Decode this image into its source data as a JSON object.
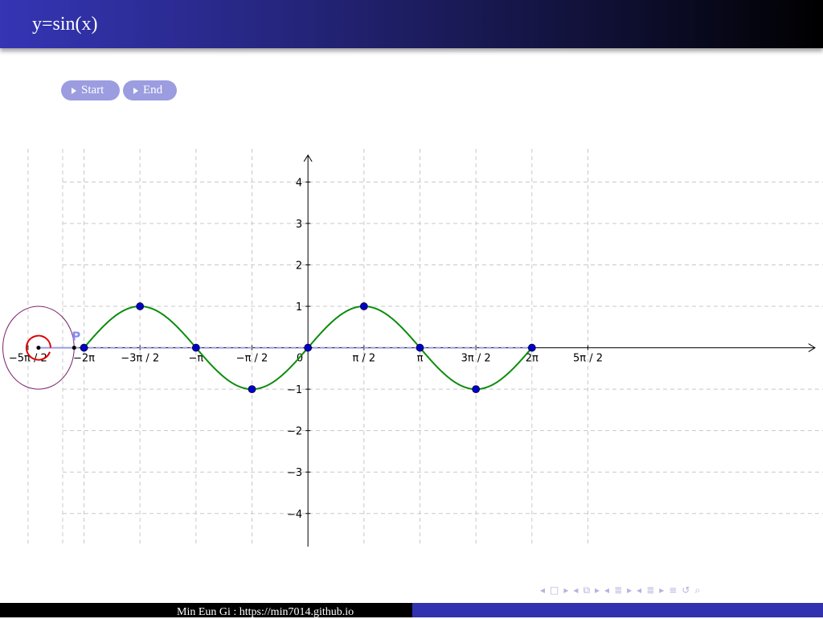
{
  "header": {
    "title": "y=sin(x)"
  },
  "controls": {
    "start_label": "Start",
    "end_label": "End"
  },
  "point_label": "P",
  "footer": {
    "author": "Min Eun Gi : https://min7014.github.io"
  },
  "nav_icons": [
    "left-arrow-icon",
    "frame-icon",
    "right-arrow-icon",
    "left-arrow-icon",
    "subsection-icon",
    "right-arrow-icon",
    "left-arrow-icon",
    "section-icon",
    "right-arrow-icon",
    "left-arrow-icon",
    "slide-icon",
    "right-arrow-icon",
    "menu-icon",
    "undo-icon",
    "search-icon"
  ],
  "colors": {
    "curve": "#0c8c0c",
    "points": "#0000cc",
    "circle": "#7a1f6e",
    "unwound": "#9b9bee",
    "angle_arc": "#dd0000"
  },
  "chart_data": {
    "type": "line",
    "title": "",
    "xlabel": "",
    "ylabel": "",
    "xlim": [
      -8.64,
      14.45
    ],
    "ylim": [
      -4.8,
      4.9
    ],
    "grid": true,
    "x_ticks": [
      {
        "v": -7.853981634,
        "label": "−5π / 2"
      },
      {
        "v": -6.283185307,
        "label": "−2π"
      },
      {
        "v": -4.71238898,
        "label": "−3π / 2"
      },
      {
        "v": -3.141592654,
        "label": "−π"
      },
      {
        "v": -1.570796327,
        "label": "−π / 2"
      },
      {
        "v": 1.570796327,
        "label": "π / 2"
      },
      {
        "v": 3.141592654,
        "label": "π"
      },
      {
        "v": 4.71238898,
        "label": "3π / 2"
      },
      {
        "v": 6.283185307,
        "label": "2π"
      },
      {
        "v": 7.853981634,
        "label": "5π / 2"
      }
    ],
    "origin_label": "0",
    "y_ticks": [
      {
        "v": 4,
        "label": "4"
      },
      {
        "v": 3,
        "label": "3"
      },
      {
        "v": 2,
        "label": "2"
      },
      {
        "v": 1,
        "label": "1"
      },
      {
        "v": -1,
        "label": "−1"
      },
      {
        "v": -2,
        "label": "−2"
      },
      {
        "v": -3,
        "label": "−3"
      },
      {
        "v": -4,
        "label": "−4"
      }
    ],
    "curve": {
      "function": "sin(x)",
      "domain": [
        -6.283185307,
        6.283185307
      ]
    },
    "key_points": [
      {
        "x": -6.283185307,
        "y": 0
      },
      {
        "x": -4.71238898,
        "y": 1
      },
      {
        "x": -3.141592654,
        "y": 0
      },
      {
        "x": -1.570796327,
        "y": -1
      },
      {
        "x": 0,
        "y": 0
      },
      {
        "x": 1.570796327,
        "y": 1
      },
      {
        "x": 3.141592654,
        "y": 0
      },
      {
        "x": 4.71238898,
        "y": -1
      },
      {
        "x": 6.283185307,
        "y": 0
      }
    ],
    "unit_circle": {
      "cx": -7.56,
      "cy": 0,
      "r": 1
    },
    "point_P": {
      "x": -6.56,
      "y": 0
    }
  }
}
